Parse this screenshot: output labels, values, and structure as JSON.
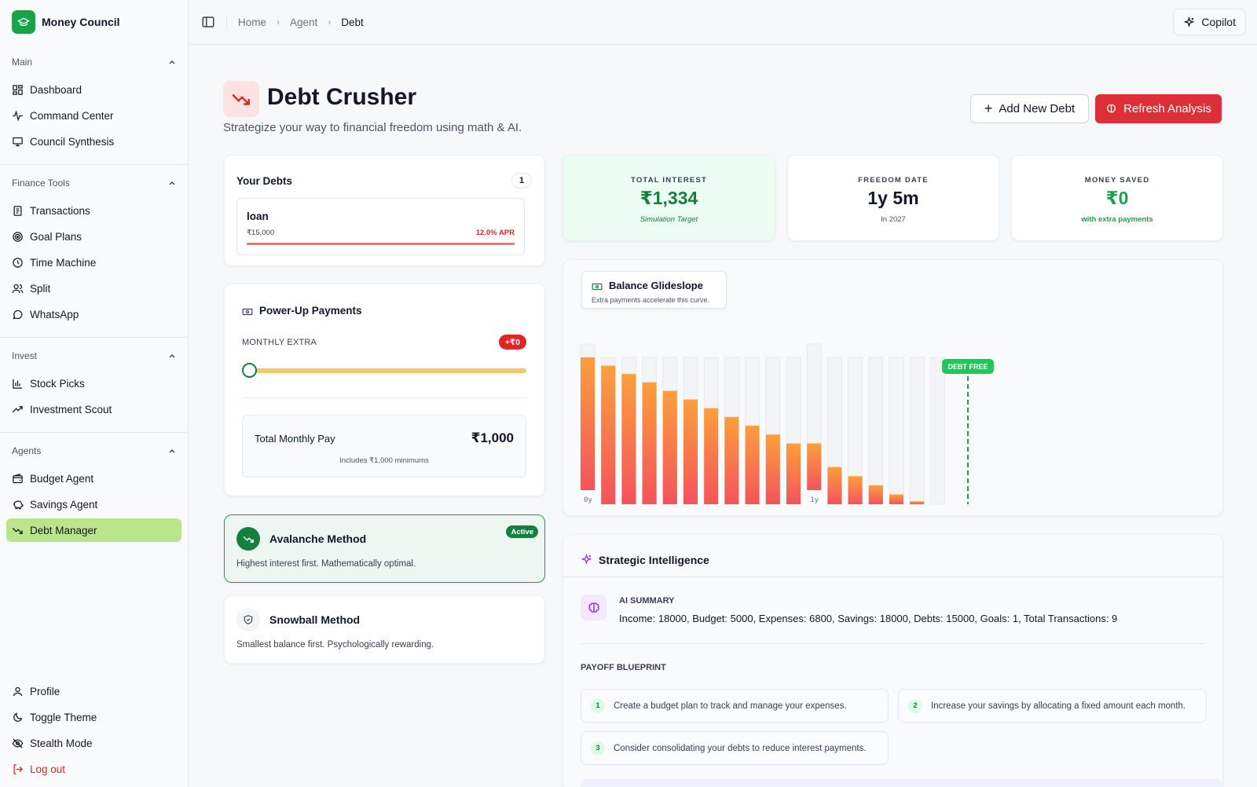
{
  "app": {
    "name": "Money Council"
  },
  "sidebar": {
    "groups": [
      {
        "label": "Main",
        "items": [
          {
            "label": "Dashboard",
            "icon": "dashboard-icon"
          },
          {
            "label": "Command Center",
            "icon": "activity-icon"
          },
          {
            "label": "Council Synthesis",
            "icon": "monitor-icon"
          }
        ]
      },
      {
        "label": "Finance Tools",
        "items": [
          {
            "label": "Transactions",
            "icon": "receipt-icon"
          },
          {
            "label": "Goal Plans",
            "icon": "target-icon"
          },
          {
            "label": "Time Machine",
            "icon": "clock-icon"
          },
          {
            "label": "Split",
            "icon": "users-icon"
          },
          {
            "label": "WhatsApp",
            "icon": "chat-icon"
          }
        ]
      },
      {
        "label": "Invest",
        "items": [
          {
            "label": "Stock Picks",
            "icon": "chart-icon"
          },
          {
            "label": "Investment Scout",
            "icon": "trending-up-icon"
          }
        ]
      },
      {
        "label": "Agents",
        "items": [
          {
            "label": "Budget Agent",
            "icon": "wallet-icon"
          },
          {
            "label": "Savings Agent",
            "icon": "piggy-bank-icon"
          },
          {
            "label": "Debt Manager",
            "icon": "trending-down-icon",
            "active": true
          }
        ]
      }
    ],
    "bottom": [
      {
        "label": "Profile"
      },
      {
        "label": "Toggle Theme"
      },
      {
        "label": "Stealth Mode"
      },
      {
        "label": "Log out"
      }
    ]
  },
  "header": {
    "breadcrumbs": [
      "Home",
      "Agent",
      "Debt"
    ],
    "copilot_label": "Copilot"
  },
  "page": {
    "title": "Debt Crusher",
    "subtitle": "Strategize your way to financial freedom using math & AI.",
    "add_label": "Add New Debt",
    "refresh_label": "Refresh Analysis"
  },
  "debts": {
    "title": "Your Debts",
    "count": "1",
    "items": [
      {
        "name": "loan",
        "amount": "₹15,000",
        "apr": "12.0% APR"
      }
    ]
  },
  "powerup": {
    "title": "Power-Up Payments",
    "label": "MONTHLY EXTRA",
    "badge": "+₹0",
    "slider_fraction": 0,
    "total_label": "Total Monthly Pay",
    "total_value": "₹1,000",
    "note": "Includes ₹1,000 minimums"
  },
  "methods": {
    "avalanche": {
      "title": "Avalanche Method",
      "desc": "Highest interest first. Mathematically optimal.",
      "badge": "Active"
    },
    "snowball": {
      "title": "Snowball Method",
      "desc": "Smallest balance first. Psychologically rewarding."
    }
  },
  "stats": [
    {
      "label": "TOTAL INTEREST",
      "value": "₹1,334",
      "note": "Simulation Target"
    },
    {
      "label": "FREEDOM DATE",
      "value": "1y 5m",
      "note": "In 2027"
    },
    {
      "label": "MONEY SAVED",
      "value": "₹0",
      "note": "with extra payments"
    }
  ],
  "colors": {
    "accent_green": "#16a34a",
    "danger_red": "#dc2f37",
    "bar_top": "#fb9f3c",
    "bar_bottom": "#f4535c"
  },
  "chart_data": {
    "type": "bar",
    "title": "Balance Glideslope",
    "subtitle": "Extra payments accelerate this curve.",
    "tick_labels": [
      {
        "index": 0,
        "label": "0y"
      },
      {
        "index": 11,
        "label": "1y"
      }
    ],
    "values": [
      15000,
      14150,
      13300,
      12450,
      11580,
      10700,
      9810,
      8920,
      8030,
      7120,
      6200,
      5280,
      3800,
      2870,
      1940,
      1000,
      300,
      0
    ],
    "ylim": [
      0,
      15000
    ],
    "marker_label": "DEBT FREE"
  },
  "intel": {
    "title": "Strategic Intelligence",
    "ai_label": "AI SUMMARY",
    "ai_text": "Income: 18000, Budget: 5000, Expenses: 6800, Savings: 18000, Debts: 15000, Goals: 1, Total Transactions: 9",
    "blueprint_label": "PAYOFF BLUEPRINT",
    "steps": [
      {
        "num": "1",
        "text": "Create a budget plan to track and manage your expenses."
      },
      {
        "num": "2",
        "text": "Increase your savings by allocating a fixed amount each month."
      },
      {
        "num": "3",
        "text": "Consider consolidating your debts to reduce interest payments."
      }
    ]
  }
}
